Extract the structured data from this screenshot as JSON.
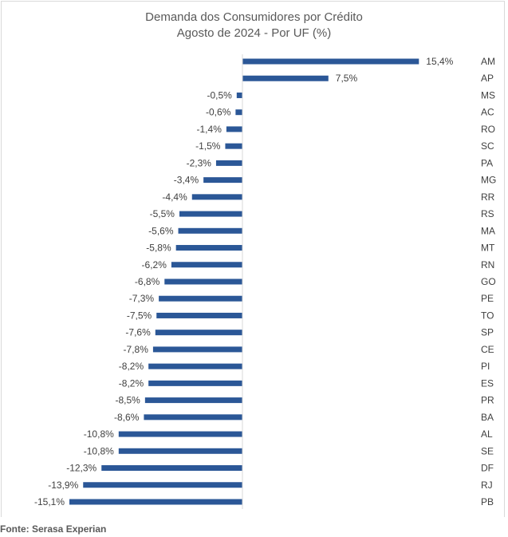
{
  "chart_data": {
    "type": "bar",
    "orientation": "horizontal",
    "title": "Demanda dos Consumidores por Crédito",
    "subtitle": "Agosto de 2024 - Por UF (%)",
    "categories": [
      "AM",
      "AP",
      "MS",
      "AC",
      "RO",
      "SC",
      "PA",
      "MG",
      "RR",
      "RS",
      "MA",
      "MT",
      "RN",
      "GO",
      "PE",
      "TO",
      "SP",
      "CE",
      "PI",
      "ES",
      "PR",
      "BA",
      "AL",
      "SE",
      "DF",
      "RJ",
      "PB"
    ],
    "values": [
      15.4,
      7.5,
      -0.5,
      -0.6,
      -1.4,
      -1.5,
      -2.3,
      -3.4,
      -4.4,
      -5.5,
      -5.6,
      -5.8,
      -6.2,
      -6.8,
      -7.3,
      -7.5,
      -7.6,
      -7.8,
      -8.2,
      -8.2,
      -8.5,
      -8.6,
      -10.8,
      -10.8,
      -12.3,
      -13.9,
      -15.1
    ],
    "labels": [
      "15,4%",
      "7,5%",
      "-0,5%",
      "-0,6%",
      "-1,4%",
      "-1,5%",
      "-2,3%",
      "-3,4%",
      "-4,4%",
      "-5,5%",
      "-5,6%",
      "-5,8%",
      "-6,2%",
      "-6,8%",
      "-7,3%",
      "-7,5%",
      "-7,6%",
      "-7,8%",
      "-8,2%",
      "-8,2%",
      "-8,5%",
      "-8,6%",
      "-10,8%",
      "-10,8%",
      "-12,3%",
      "-13,9%",
      "-15,1%"
    ],
    "color": "#2b5797",
    "xlim": [
      -15.1,
      15.4
    ],
    "grid": false
  },
  "source": "Fonte: Serasa Experian"
}
